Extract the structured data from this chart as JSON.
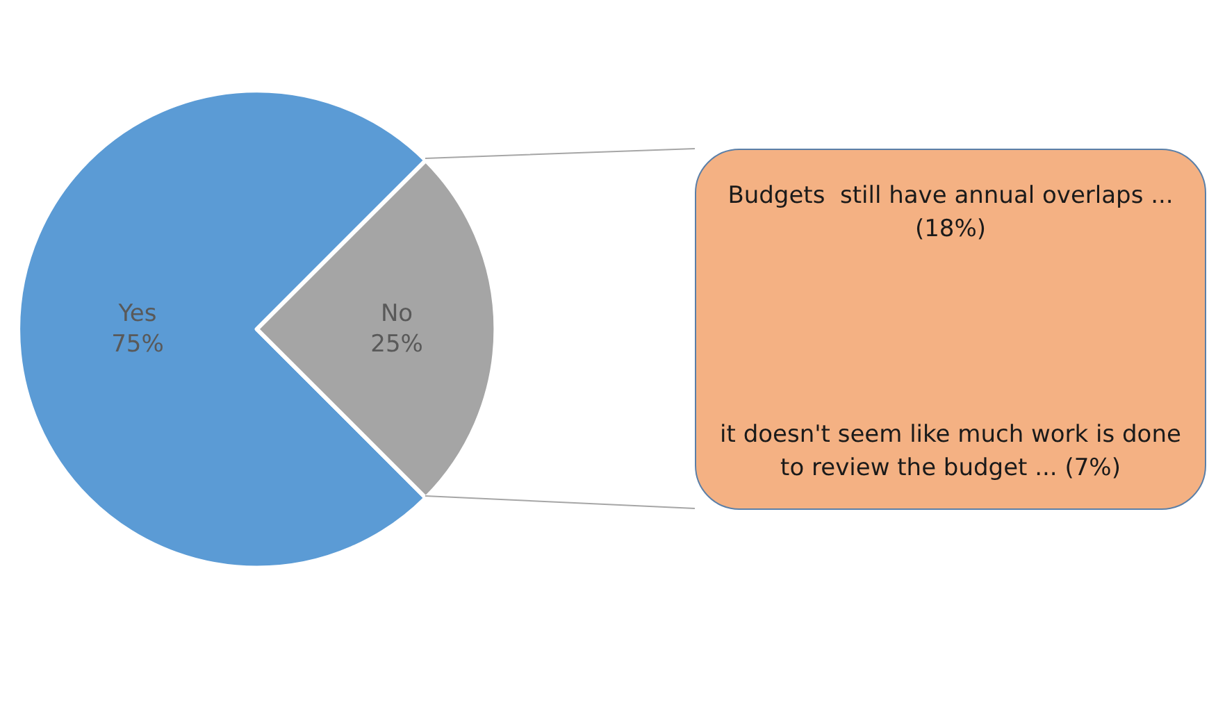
{
  "chart_data": {
    "type": "pie",
    "categories": [
      "Yes",
      "No"
    ],
    "values": [
      75,
      25
    ],
    "value_labels": [
      "75%",
      "25%"
    ],
    "colors": [
      "#5b9bd5",
      "#a5a5a5"
    ],
    "legend": false,
    "annotations": [
      "Budgets  still have annual overlaps ... (18%)",
      "it doesn't seem like much work is done to review the budget ... (7%)"
    ]
  }
}
